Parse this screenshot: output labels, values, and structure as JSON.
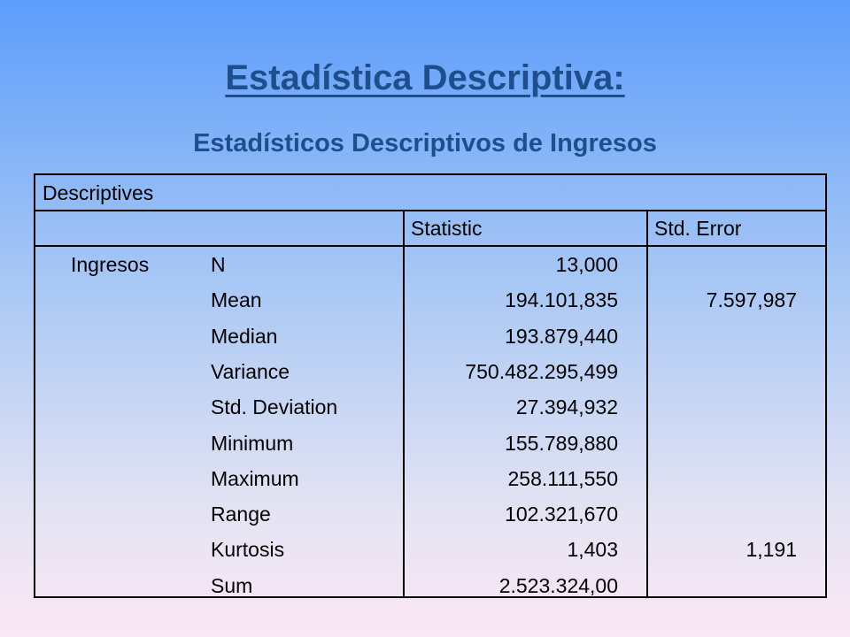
{
  "title": "Estadística Descriptiva:",
  "subtitle": "Estadísticos Descriptivos de Ingresos",
  "table": {
    "caption": "Descriptives",
    "header": [
      "Statistic",
      "Std. Error"
    ],
    "group": "Ingresos",
    "rows": [
      {
        "label": "N",
        "statistic": "13,000"
      },
      {
        "label": "Mean",
        "statistic": "194.101,835",
        "std_error": "7.597,987"
      },
      {
        "label": "Median",
        "statistic": "193.879,440"
      },
      {
        "label": "Variance",
        "statistic": "750.482.295,499"
      },
      {
        "label": "Std. Deviation",
        "statistic": "27.394,932"
      },
      {
        "label": "Minimum",
        "statistic": "155.789,880"
      },
      {
        "label": "Maximum",
        "statistic": "258.111,550"
      },
      {
        "label": "Range",
        "statistic": "102.321,670"
      },
      {
        "label": "Kurtosis",
        "statistic": "1,403",
        "std_error": "1,191"
      },
      {
        "label": "Sum",
        "statistic": "2.523.324,00"
      }
    ]
  }
}
